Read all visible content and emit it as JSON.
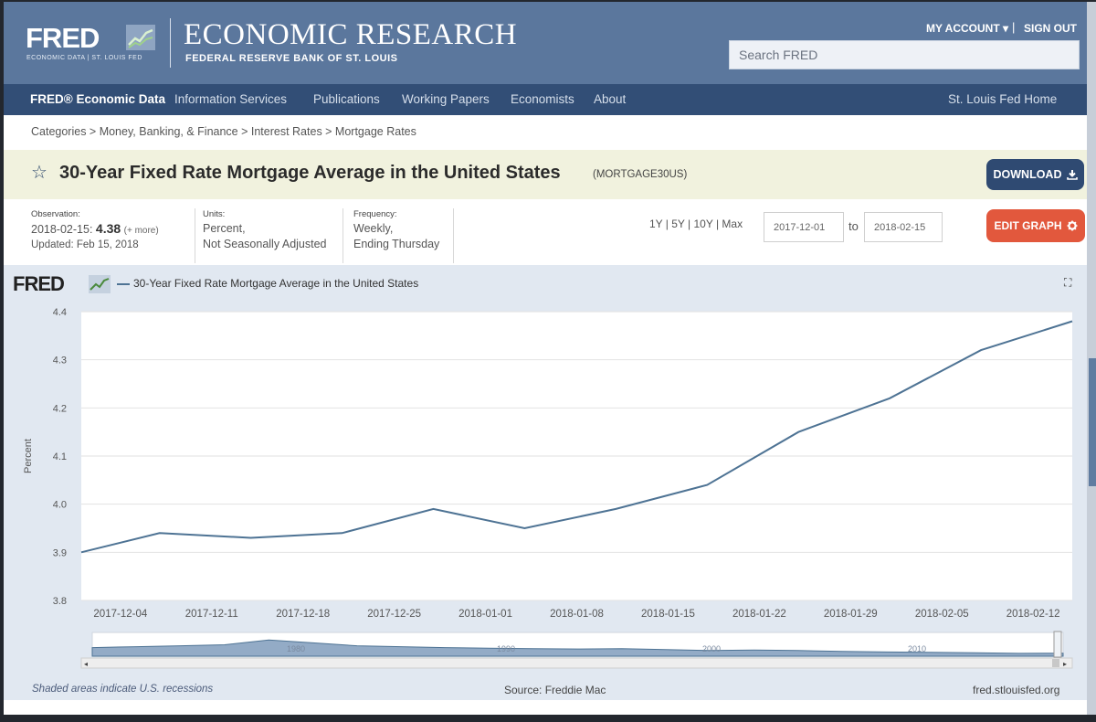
{
  "header": {
    "logo_text": "FRED",
    "logo_sub": "ECONOMIC DATA | ST. LOUIS FED",
    "title": "ECONOMIC RESEARCH",
    "subtitle": "FEDERAL RESERVE BANK OF ST. LOUIS",
    "my_account": "MY ACCOUNT ▾",
    "separator": "|",
    "sign_out": "SIGN OUT",
    "search_placeholder": "Search FRED"
  },
  "nav": {
    "items": [
      "FRED® Economic Data",
      "Information Services",
      "Publications",
      "Working Papers",
      "Economists",
      "About"
    ],
    "right": "St. Louis Fed Home"
  },
  "breadcrumb": "Categories > Money, Banking, & Finance > Interest Rates > Mortgage Rates",
  "series": {
    "star_icon": "star-icon",
    "title": "30-Year Fixed Rate Mortgage Average in the United States",
    "id": "(MORTGAGE30US)",
    "download_label": "DOWNLOAD",
    "edit_label": "EDIT GRAPH"
  },
  "info": {
    "observation_label": "Observation:",
    "observation_date": "2018-02-15:",
    "observation_value": "4.38",
    "more": "(+ more)",
    "updated": "Updated: Feb 15, 2018",
    "units_label": "Units:",
    "units_line1": "Percent,",
    "units_line2": "Not Seasonally Adjusted",
    "frequency_label": "Frequency:",
    "frequency_line1": "Weekly,",
    "frequency_line2": "Ending Thursday"
  },
  "range": {
    "links": "1Y | 5Y | 10Y | Max",
    "from": "2017-12-01",
    "to_label": "to",
    "to": "2018-02-15"
  },
  "chart_header": {
    "logo": "FRED",
    "legend_label": "30-Year Fixed Rate Mortgage Average in the United States"
  },
  "chart_data": {
    "type": "line",
    "title": "",
    "xlabel": "",
    "ylabel": "Percent",
    "x": [
      "2017-12-07",
      "2017-12-14",
      "2017-12-21",
      "2017-12-28",
      "2018-01-04",
      "2018-01-11",
      "2018-01-18",
      "2018-01-25",
      "2018-02-01",
      "2018-02-08",
      "2018-02-15"
    ],
    "series": [
      {
        "name": "30-Year Fixed Rate Mortgage Average in the United States",
        "values": [
          3.94,
          3.93,
          3.94,
          3.99,
          3.95,
          3.99,
          4.04,
          4.15,
          4.22,
          4.32,
          4.38
        ]
      }
    ],
    "series_start": {
      "date": "2017-12-01",
      "value": 3.9
    },
    "x_tick_labels": [
      "2017-12-04",
      "2017-12-11",
      "2017-12-18",
      "2017-12-25",
      "2018-01-01",
      "2018-01-08",
      "2018-01-15",
      "2018-01-22",
      "2018-01-29",
      "2018-02-05",
      "2018-02-12"
    ],
    "y_ticks": [
      3.8,
      3.9,
      4.0,
      4.1,
      4.2,
      4.3,
      4.4
    ],
    "y_tick_labels": [
      "3.8",
      "3.9",
      "4.0",
      "4.1",
      "4.2",
      "4.3",
      "4.4"
    ],
    "xlim": [
      "2017-12-01",
      "2018-02-15"
    ],
    "ylim": [
      3.8,
      4.4
    ],
    "grid": true,
    "legend": "top-left",
    "line_color": "#4e7394",
    "navigator_labels": [
      "1980",
      "1990",
      "2000",
      "2010"
    ]
  },
  "footer": {
    "left": "Shaded areas indicate U.S. recessions",
    "source": "Source: Freddie Mac",
    "right": "fred.stlouisfed.org"
  },
  "colors": {
    "banner": "#5b779d",
    "nav": "#324e76",
    "title_band": "#f1f2de",
    "download": "#2f4a72",
    "edit_graph": "#e2583d",
    "chart_bg": "#e1e8f1"
  }
}
